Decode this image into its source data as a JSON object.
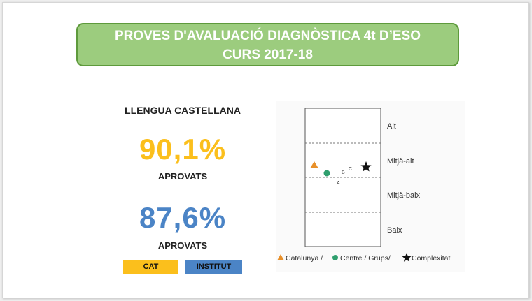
{
  "header": {
    "line1": "PROVES D'AVALUACIÓ DIAGNÒSTICA 4t D’ESO",
    "line2": "CURS 2017-18"
  },
  "subject": "LLENGUA CASTELLANA",
  "results": [
    {
      "value": "90,1%",
      "label": "APROVATS",
      "color": "#fbbf1c"
    },
    {
      "value": "87,6%",
      "label": "APROVATS",
      "color": "#4b84c6"
    }
  ],
  "legend_boxes": [
    {
      "label": "CAT",
      "color": "#fbbf1c"
    },
    {
      "label": "INSTITUT",
      "color": "#4b84c6"
    }
  ],
  "chart": {
    "levels": [
      "Alt",
      "Mitjà-alt",
      "Mitjà-baix",
      "Baix"
    ],
    "points": {
      "A": "A",
      "B": "B",
      "C": "C"
    },
    "legend": {
      "cat": "Catalunya /",
      "centre": "Centre / Grups/",
      "complex": "Complexitat"
    },
    "colors": {
      "catalunya": "#e8902a",
      "centre": "#2f9f6e",
      "complexitat": "#111111"
    }
  }
}
